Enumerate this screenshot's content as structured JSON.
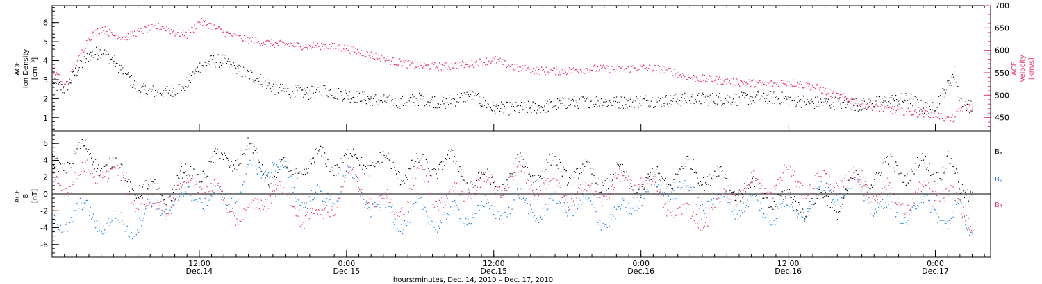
{
  "colors": {
    "density": "#000000",
    "velocity": "#e8386a",
    "bx": "#000000",
    "by": "#1f7fe0",
    "bz": "#e8386a",
    "frame": "#000000"
  },
  "chart_data": [
    {
      "type": "scatter",
      "panel": "top",
      "left_axis_label": [
        "ACE",
        "Ion Density",
        "[cm⁻³]"
      ],
      "right_axis_label": [
        "ACE",
        "Velocity",
        "[km/s]"
      ],
      "ylim_left": [
        0.3,
        6.9
      ],
      "ylim_right": [
        420,
        700
      ],
      "left_ticks": [
        "1",
        "2",
        "3",
        "4",
        "5",
        "6"
      ],
      "right_ticks": [
        "450",
        "500",
        "550",
        "600",
        "650",
        "700"
      ],
      "x_range_hours": [
        0,
        76.5
      ],
      "series": [
        {
          "key": "density",
          "axis": "left",
          "x": [
            0,
            1,
            2,
            3,
            4,
            5,
            6,
            7,
            8,
            9,
            10,
            11,
            12,
            13,
            14,
            15,
            16,
            17,
            18,
            19,
            20,
            21,
            22,
            23,
            24,
            26,
            28,
            30,
            32,
            34,
            36,
            38,
            40,
            42,
            44,
            46,
            48,
            50,
            52,
            54,
            56,
            58,
            60,
            62,
            64,
            66,
            68,
            70,
            71,
            72,
            73,
            73.5,
            74,
            75
          ],
          "values": [
            2.8,
            2.5,
            3.5,
            4.3,
            4.5,
            4.0,
            3.3,
            2.5,
            2.4,
            2.4,
            2.5,
            2.8,
            3.7,
            4.0,
            4.0,
            3.5,
            3.3,
            3.0,
            2.6,
            2.4,
            2.4,
            2.3,
            2.5,
            2.3,
            2.2,
            2.0,
            1.8,
            2.0,
            1.8,
            2.2,
            1.5,
            1.5,
            1.6,
            1.8,
            1.9,
            1.8,
            1.9,
            1.9,
            2.0,
            2.0,
            2.0,
            2.1,
            2.0,
            1.8,
            1.8,
            1.7,
            1.9,
            2.0,
            1.5,
            1.7,
            2.7,
            3.4,
            2.0,
            1.5
          ]
        },
        {
          "key": "velocity",
          "axis": "right",
          "x": [
            0,
            1,
            2,
            3,
            4,
            5,
            6,
            7,
            8,
            9,
            10,
            11,
            12,
            13,
            14,
            15,
            16,
            17,
            18,
            19,
            20,
            21,
            22,
            23,
            24,
            26,
            28,
            30,
            32,
            34,
            36,
            38,
            40,
            42,
            44,
            46,
            48,
            50,
            52,
            54,
            56,
            58,
            60,
            62,
            64,
            66,
            68,
            70,
            71,
            72,
            73,
            73.5,
            74,
            75
          ],
          "values": [
            560,
            520,
            575,
            630,
            650,
            635,
            630,
            642,
            650,
            655,
            640,
            635,
            665,
            655,
            640,
            630,
            625,
            620,
            615,
            615,
            612,
            610,
            612,
            608,
            605,
            590,
            575,
            565,
            565,
            570,
            580,
            560,
            555,
            555,
            560,
            558,
            562,
            558,
            540,
            535,
            530,
            525,
            530,
            520,
            500,
            480,
            470,
            462,
            460,
            458,
            445,
            450,
            470,
            475
          ]
        }
      ]
    },
    {
      "type": "scatter",
      "panel": "bottom",
      "left_axis_label": [
        "ACE",
        "B",
        "[nT]"
      ],
      "ylim": [
        -7.5,
        7.5
      ],
      "ticks": [
        "-6",
        "-4",
        "-2",
        "0",
        "2",
        "4",
        "6"
      ],
      "legend": [
        "Bₓ",
        "Bᵧ",
        "B₄"
      ],
      "legend_placement": "right",
      "x_range_hours": [
        0,
        76.5
      ],
      "series": [
        {
          "key": "bx",
          "x": [
            0,
            2,
            4,
            6,
            8,
            10,
            12,
            14,
            16,
            18,
            20,
            22,
            24,
            26,
            28,
            30,
            32,
            34,
            36,
            38,
            40,
            42,
            44,
            46,
            48,
            50,
            52,
            54,
            56,
            58,
            60,
            62,
            64,
            66,
            68,
            70,
            72,
            73,
            74,
            75
          ],
          "values": [
            3,
            5,
            4,
            2,
            0,
            1,
            3,
            4,
            5,
            2,
            3,
            4,
            4,
            4,
            3,
            3,
            4,
            2,
            1,
            3,
            3,
            3,
            2,
            2,
            1,
            2,
            3,
            2,
            1,
            0,
            -1,
            -1,
            -1,
            2,
            3,
            3,
            3,
            4,
            0,
            1
          ]
        },
        {
          "key": "by",
          "x": [
            0,
            2,
            4,
            6,
            8,
            10,
            12,
            14,
            16,
            18,
            20,
            22,
            24,
            26,
            28,
            30,
            32,
            34,
            36,
            38,
            40,
            42,
            44,
            46,
            48,
            50,
            52,
            54,
            56,
            58,
            60,
            62,
            64,
            66,
            68,
            70,
            72,
            73,
            74,
            75
          ],
          "values": [
            -4,
            -2,
            -3,
            -4,
            -2,
            -1,
            0,
            -1,
            2,
            4,
            0,
            -1,
            2,
            -1,
            -3,
            -2,
            -3,
            -2,
            -2,
            -1,
            -2,
            -1,
            -2,
            -3,
            0,
            1,
            0,
            -1,
            -1,
            -2,
            -2,
            -1,
            1,
            0,
            -2,
            -2,
            -1,
            -4,
            -2,
            -4
          ]
        },
        {
          "key": "bz",
          "x": [
            0,
            2,
            4,
            6,
            8,
            10,
            12,
            14,
            16,
            18,
            20,
            22,
            24,
            26,
            28,
            30,
            32,
            34,
            36,
            38,
            40,
            42,
            44,
            46,
            48,
            50,
            52,
            54,
            56,
            58,
            60,
            62,
            64,
            66,
            68,
            70,
            72,
            73,
            74,
            75
          ],
          "values": [
            1,
            2,
            3,
            1,
            -2,
            0,
            2,
            -1,
            -3,
            1,
            -2,
            -3,
            2,
            0,
            -2,
            2,
            -1,
            1,
            1,
            2,
            1,
            0,
            0,
            1,
            2,
            -1,
            -3,
            -2,
            1,
            1,
            2,
            1,
            2,
            1,
            0,
            -1,
            1,
            0,
            -2,
            -3
          ]
        }
      ]
    }
  ],
  "xaxis": {
    "major_ticks": [
      {
        "hours": 12,
        "top": "12:00",
        "bottom": "Dec.14"
      },
      {
        "hours": 24,
        "top": "0:00",
        "bottom": "Dec.15"
      },
      {
        "hours": 36,
        "top": "12:00",
        "bottom": "Dec.15"
      },
      {
        "hours": 48,
        "top": "0:00",
        "bottom": "Dec.16"
      },
      {
        "hours": 60,
        "top": "12:00",
        "bottom": "Dec.16"
      },
      {
        "hours": 72,
        "top": "0:00",
        "bottom": "Dec.17"
      }
    ],
    "title": "hours:minutes, Dec. 14, 2010 – Dec. 17, 2010"
  }
}
